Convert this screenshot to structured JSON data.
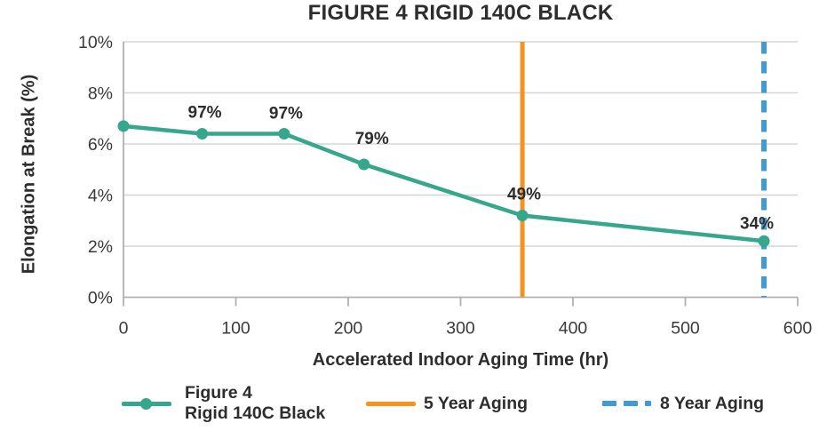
{
  "header": {
    "title": "FIGURE 4 RIGID 140C BLACK"
  },
  "chart_data": {
    "type": "line",
    "title": "FIGURE 4 RIGID 140C BLACK",
    "xlabel": "Accelerated Indoor Aging Time (hr)",
    "ylabel": "Elongation at Break (%)",
    "xlim": [
      0,
      600
    ],
    "ylim": [
      0,
      10
    ],
    "x_ticks": [
      0,
      100,
      200,
      300,
      400,
      500,
      600
    ],
    "x_tick_labels": [
      "0",
      "100",
      "200",
      "300",
      "400",
      "500",
      "600"
    ],
    "y_ticks": [
      0,
      2,
      4,
      6,
      8,
      10
    ],
    "y_tick_labels": [
      "0%",
      "2%",
      "4%",
      "6%",
      "8%",
      "10%"
    ],
    "grid": {
      "horizontal": true,
      "vertical": false
    },
    "legend_position": "bottom",
    "series": [
      {
        "name": "Figure 4 Rigid 140C Black",
        "color": "#35a78c",
        "marker": "circle",
        "x": [
          0,
          70,
          143,
          214,
          355,
          570
        ],
        "y": [
          6.7,
          6.4,
          6.4,
          5.2,
          3.2,
          2.2
        ],
        "point_labels": [
          "",
          "97%",
          "97%",
          "79%",
          "49%",
          "34%"
        ],
        "label_offsets": [
          [
            0,
            0
          ],
          [
            3,
            -18
          ],
          [
            2,
            -17
          ],
          [
            9,
            -23
          ],
          [
            2,
            -18
          ],
          [
            -8,
            -14
          ]
        ]
      }
    ],
    "reference_lines": [
      {
        "name": "5 Year Aging",
        "x": 355,
        "color": "#f2941f",
        "style": "solid",
        "width": 5
      },
      {
        "name": "8 Year Aging",
        "x": 570,
        "color": "#3f9ad6",
        "style": "dashed",
        "width": 6
      }
    ]
  },
  "legend": {
    "series_label_line1": "Figure 4",
    "series_label_line2": "Rigid 140C Black",
    "five_year_label": "5 Year Aging",
    "eight_year_label": "8 Year Aging"
  },
  "colors": {
    "series": "#35a78c",
    "five_year": "#f2941f",
    "eight_year": "#3f9ad6",
    "grid": "#d5d5d5",
    "axis": "#b0b0b0",
    "label_text": "#2d2d2d",
    "tick_text": "#3a3a3a"
  }
}
